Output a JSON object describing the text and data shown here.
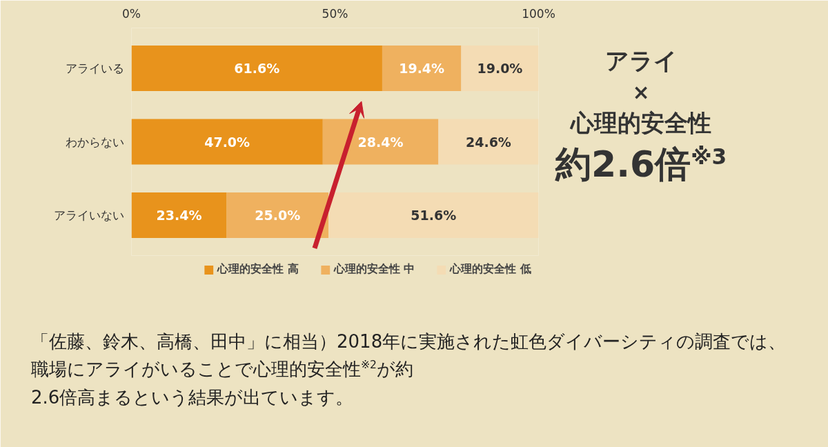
{
  "chart_data": {
    "type": "bar",
    "orientation": "horizontal",
    "stacked": true,
    "categories": [
      "アライいる",
      "わからない",
      "アライいない"
    ],
    "series": [
      {
        "name": "心理的安全性 高",
        "color": "#e8931c",
        "values": [
          61.6,
          47.0,
          23.4
        ],
        "value_labels": [
          "61.6%",
          "47.0%",
          "23.4%"
        ]
      },
      {
        "name": "心理的安全性 中",
        "color": "#efb15f",
        "values": [
          19.4,
          28.4,
          25.0
        ],
        "value_labels": [
          "19.4%",
          "28.4%",
          "25.0%"
        ]
      },
      {
        "name": "心理的安全性 低",
        "color": "#f4dcb4",
        "values": [
          19.0,
          24.6,
          51.6
        ],
        "value_labels": [
          "19.0%",
          "24.6%",
          "51.6%"
        ]
      }
    ],
    "xlim": [
      0,
      100
    ],
    "xticks": [
      {
        "value": 0,
        "label": "0%"
      },
      {
        "value": 50,
        "label": "50%"
      },
      {
        "value": 100,
        "label": "100%"
      }
    ],
    "grid": false,
    "legend": "bottom",
    "annotations": [
      "アライ",
      "×",
      "心理的安全性",
      "約2.6倍$^{※3}$",
      "「佐藤、鈴木、高橋、田中」に相当）2018年に実施された虹色ダイバーシティの調査では、",
      "職場にアライがいることで心理的安全性$^{※2}$が約",
      "2.6倍高まるという結果が出ています。"
    ]
  }
}
